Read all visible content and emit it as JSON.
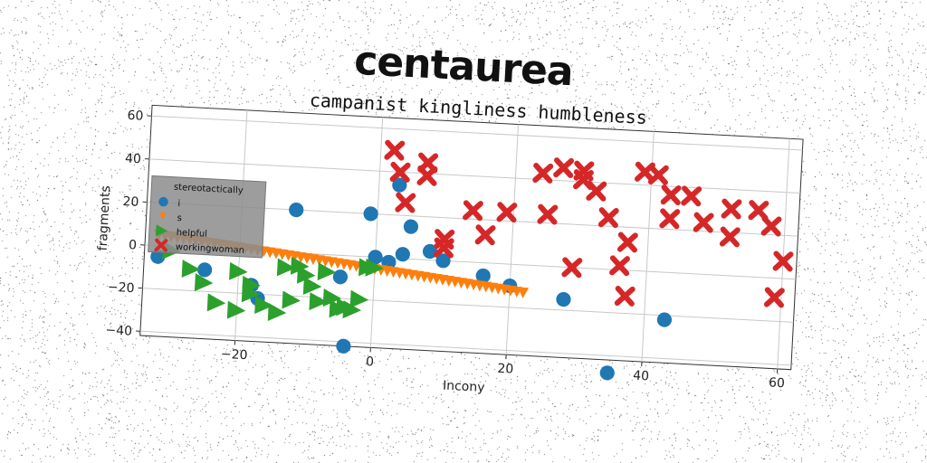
{
  "supertitle": "centaurea",
  "chart_data": {
    "type": "scatter",
    "title": "campanist kingliness humbleness",
    "xlabel": "Incony",
    "ylabel": "fragments",
    "xlim": [
      -34,
      62
    ],
    "ylim": [
      -42,
      65
    ],
    "xticks": [
      -20,
      0,
      20,
      40,
      60
    ],
    "yticks": [
      -40,
      -20,
      0,
      20,
      40,
      60
    ],
    "grid": true,
    "legend": {
      "title": "stereotactically",
      "placement": "center-left"
    },
    "series": [
      {
        "name": "i",
        "marker": "circle",
        "color": "#1f77b4",
        "points": [
          [
            -32,
            -5
          ],
          [
            -25,
            -10
          ],
          [
            -18,
            -16
          ],
          [
            -17,
            -22
          ],
          [
            -12,
            20
          ],
          [
            -5,
            -10
          ],
          [
            -4,
            -42
          ],
          [
            -1,
            20
          ],
          [
            0,
            0
          ],
          [
            2,
            -2
          ],
          [
            3,
            34
          ],
          [
            4,
            2
          ],
          [
            5,
            15
          ],
          [
            8,
            4
          ],
          [
            10,
            0
          ],
          [
            16,
            -6
          ],
          [
            20,
            -10
          ],
          [
            28,
            -15
          ],
          [
            35,
            -48
          ],
          [
            43,
            -22
          ]
        ]
      },
      {
        "name": "s",
        "marker": "triangle-down",
        "color": "#ff7f0e",
        "line": {
          "x0": -32,
          "y0": 5,
          "x1": 22,
          "y1": -13,
          "count": 60
        }
      },
      {
        "name": "helpful",
        "marker": "triangle-right",
        "color": "#2ca02c",
        "points": [
          [
            -30,
            -2
          ],
          [
            -27,
            -10
          ],
          [
            -25,
            -16
          ],
          [
            -23,
            -25
          ],
          [
            -20,
            -10
          ],
          [
            -20,
            -28
          ],
          [
            -18,
            -16
          ],
          [
            -16,
            -25
          ],
          [
            -14,
            -28
          ],
          [
            -12,
            -22
          ],
          [
            -11,
            -6
          ],
          [
            -10,
            -10
          ],
          [
            -9,
            -15
          ],
          [
            -8,
            -22
          ],
          [
            -7,
            -8
          ],
          [
            -6,
            -20
          ],
          [
            -5,
            -25
          ],
          [
            -4,
            -24
          ],
          [
            -3,
            -25
          ],
          [
            -2,
            -20
          ],
          [
            -1,
            -5
          ],
          [
            0,
            -5
          ],
          [
            -18,
            -20
          ],
          [
            -13,
            -7
          ]
        ]
      },
      {
        "name": "workingwoman",
        "marker": "x-filled",
        "color": "#d62728",
        "points": [
          [
            2,
            50
          ],
          [
            3,
            40
          ],
          [
            4,
            26
          ],
          [
            7,
            45
          ],
          [
            7,
            39
          ],
          [
            10,
            10
          ],
          [
            10,
            6
          ],
          [
            14,
            24
          ],
          [
            16,
            13
          ],
          [
            19,
            24
          ],
          [
            24,
            43
          ],
          [
            25,
            24
          ],
          [
            27,
            46
          ],
          [
            30,
            45
          ],
          [
            30,
            41
          ],
          [
            32,
            36
          ],
          [
            34,
            24
          ],
          [
            37,
            13
          ],
          [
            37,
            -12
          ],
          [
            36,
            2
          ],
          [
            39,
            46
          ],
          [
            41,
            45
          ],
          [
            43,
            25
          ],
          [
            43,
            36
          ],
          [
            46,
            36
          ],
          [
            48,
            24
          ],
          [
            52,
            31
          ],
          [
            52,
            18
          ],
          [
            56,
            31
          ],
          [
            58,
            24
          ],
          [
            59,
            -9
          ],
          [
            60,
            8
          ],
          [
            29,
            0
          ]
        ]
      }
    ]
  }
}
